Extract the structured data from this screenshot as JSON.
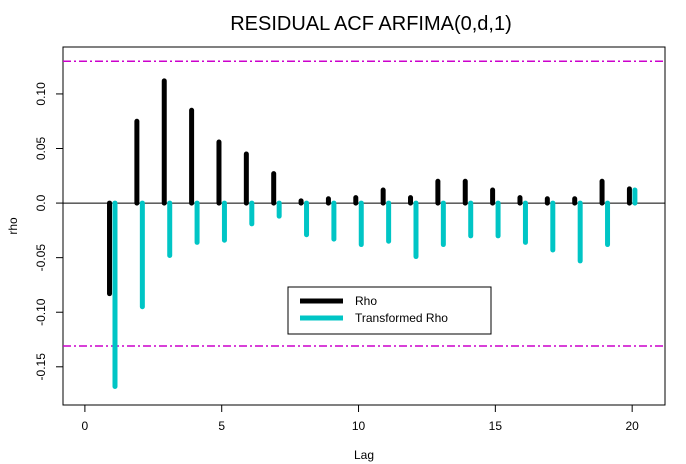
{
  "chart_data": {
    "type": "bar",
    "title": "RESIDUAL ACF ARFIMA(0,d,1)",
    "xlabel": "Lag",
    "ylabel": "rho",
    "xlim": [
      -0.8,
      21.2
    ],
    "ylim": [
      -0.185,
      0.143
    ],
    "x_ticks": [
      0,
      5,
      10,
      15,
      20
    ],
    "y_ticks": [
      -0.15,
      -0.1,
      -0.05,
      0.0,
      0.05,
      0.1
    ],
    "y_tick_labels": [
      "-0.15",
      "-0.10",
      "-0.05",
      "0.0",
      "0.05",
      "0.10"
    ],
    "confidence_bounds": [
      0.13,
      -0.131
    ],
    "confidence_color": "#cc00cc",
    "legend_position": "center-right",
    "series": [
      {
        "name": "Rho",
        "color": "#000000",
        "x_offset": -0.1,
        "x": [
          1,
          2,
          3,
          4,
          5,
          6,
          7,
          8,
          9,
          10,
          11,
          12,
          13,
          14,
          15,
          16,
          17,
          18,
          19,
          20
        ],
        "values": [
          -0.083,
          0.075,
          0.112,
          0.085,
          0.056,
          0.045,
          0.027,
          0.002,
          0.004,
          0.005,
          0.012,
          0.005,
          0.02,
          0.02,
          0.012,
          0.005,
          0.004,
          0.004,
          0.02,
          0.013
        ]
      },
      {
        "name": "Transformed Rho",
        "color": "#00c5c5",
        "x_offset": 0.1,
        "x": [
          1,
          2,
          3,
          4,
          5,
          6,
          7,
          8,
          9,
          10,
          11,
          12,
          13,
          14,
          15,
          16,
          17,
          18,
          19,
          20
        ],
        "values": [
          -0.168,
          -0.095,
          -0.048,
          -0.036,
          -0.034,
          -0.019,
          -0.012,
          -0.029,
          -0.033,
          -0.038,
          -0.035,
          -0.049,
          -0.038,
          -0.03,
          -0.03,
          -0.036,
          -0.043,
          -0.053,
          -0.038,
          0.012
        ]
      }
    ]
  }
}
